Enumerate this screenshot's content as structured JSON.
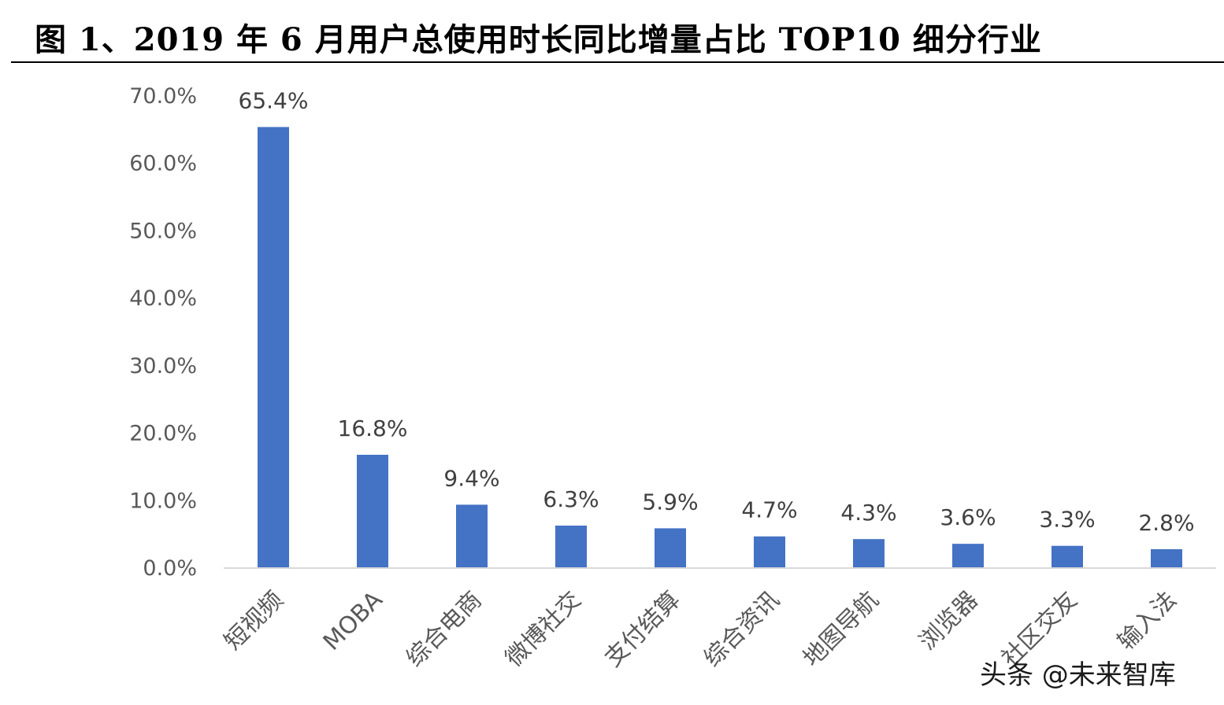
{
  "title": "图 1、2019 年 6 月用户总使用时长同比增量占比 TOP10 细分行业",
  "watermark": "头条 @未来智库",
  "colors": {
    "bar": "#4472C4",
    "axis_text": "#595959",
    "axis_line": "#D9D9D9",
    "label_text": "#404040"
  },
  "chart_data": {
    "type": "bar",
    "categories": [
      "短视频",
      "MOBA",
      "综合电商",
      "微博社交",
      "支付结算",
      "综合资讯",
      "地图导航",
      "浏览器",
      "社区交友",
      "输入法"
    ],
    "values": [
      65.4,
      16.8,
      9.4,
      6.3,
      5.9,
      4.7,
      4.3,
      3.6,
      3.3,
      2.8
    ],
    "data_labels": [
      "65.4%",
      "16.8%",
      "9.4%",
      "6.3%",
      "5.9%",
      "4.7%",
      "4.3%",
      "3.6%",
      "3.3%",
      "2.8%"
    ],
    "yticks": [
      "0.0%",
      "10.0%",
      "20.0%",
      "30.0%",
      "40.0%",
      "50.0%",
      "60.0%",
      "70.0%"
    ],
    "ylim": [
      0,
      70
    ],
    "grid": false,
    "legend": "none"
  }
}
